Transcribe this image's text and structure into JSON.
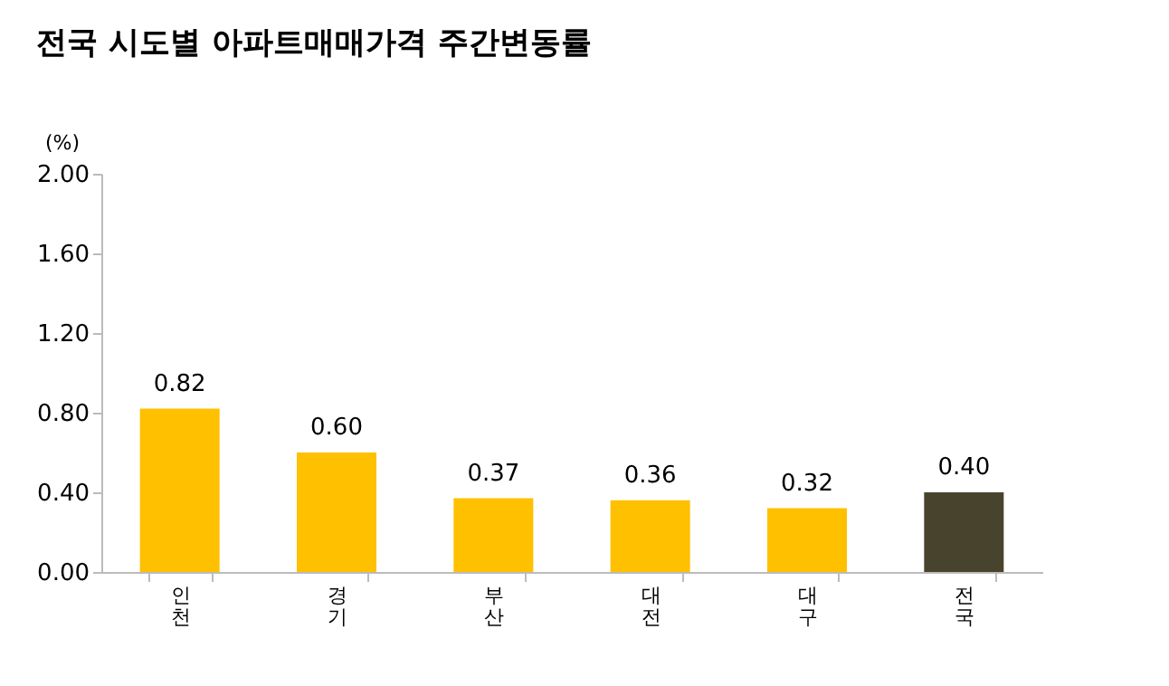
{
  "chart_data": {
    "type": "bar",
    "title": "전국 시도별 아파트매매가격 주간변동률",
    "ylabel": "(%)",
    "categories": [
      "인천",
      "경기",
      "부산",
      "대전",
      "대구",
      "전국"
    ],
    "values": [
      0.82,
      0.6,
      0.37,
      0.36,
      0.32,
      0.4
    ],
    "colors": [
      "#ffc000",
      "#ffc000",
      "#ffc000",
      "#ffc000",
      "#ffc000",
      "#48432c"
    ],
    "ylim": [
      0,
      2
    ],
    "yticks": [
      {
        "value": 0,
        "label": "0.00"
      },
      {
        "value": 0.4,
        "label": "0.40"
      },
      {
        "value": 0.8,
        "label": "0.80"
      },
      {
        "value": 1.2,
        "label": "1.20"
      },
      {
        "value": 1.6,
        "label": "1.60"
      },
      {
        "value": 2,
        "label": "2.00"
      }
    ],
    "value_labels": [
      "0.82",
      "0.60",
      "0.37",
      "0.36",
      "0.32",
      "0.40"
    ],
    "grid": false
  }
}
